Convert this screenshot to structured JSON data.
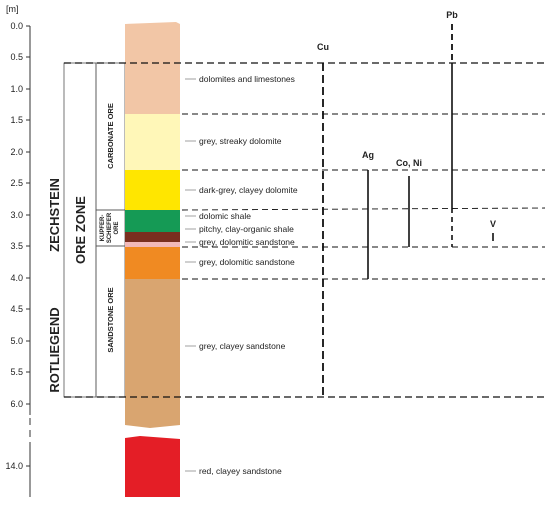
{
  "axis": {
    "unit_label": "[m]",
    "ticks": [
      "0.0",
      "0.5",
      "1.0",
      "1.5",
      "2.0",
      "2.5",
      "3.0",
      "3.5",
      "4.0",
      "4.5",
      "5.0",
      "5.5",
      "6.0",
      "14.0"
    ]
  },
  "column_labels": {
    "zechstein": "ZECHSTEIN",
    "rotliegend": "ROTLIEGEND",
    "ore_zone": "ORE ZONE",
    "carbonate_ore": "CARBONATE ORE",
    "kupferschiefer_ore_line1": "KUPFER-",
    "kupferschiefer_ore_line2": "SCHIEFER",
    "kupferschiefer_ore_line3": "ORE",
    "sandstone_ore": "SANDSTONE ORE"
  },
  "layers": [
    {
      "label": "dolomites and limestones",
      "color": "#f2c6a6"
    },
    {
      "label": "grey, streaky dolomite",
      "color": "#fff7b8"
    },
    {
      "label": "dark-grey, clayey dolomite",
      "color": "#ffe600"
    },
    {
      "label": "dolomic shale",
      "color": "#159a55"
    },
    {
      "label": "pitchy, clay-organic shale",
      "color": "#7a2f1f"
    },
    {
      "label": "grey, dolomitic sandstone",
      "color": "#f2b8b8"
    },
    {
      "label": "grey, dolomitic sandstone",
      "color": "#f08a22"
    },
    {
      "label": "grey, clayey sandstone",
      "color": "#d9a570"
    },
    {
      "label": "red, clayey sandstone",
      "color": "#e41e26"
    }
  ],
  "elements": [
    {
      "name": "Cu",
      "from_m": 0.6,
      "to_m": 5.8
    },
    {
      "name": "Pb",
      "from_m": 0.0,
      "to_m": 3.5
    },
    {
      "name": "Ag",
      "from_m": 2.3,
      "to_m": 4.0
    },
    {
      "name": "Co, Ni",
      "from_m": 2.3,
      "to_m": 3.5
    },
    {
      "name": "V",
      "from_m": 3.3,
      "to_m": 3.5
    }
  ]
}
